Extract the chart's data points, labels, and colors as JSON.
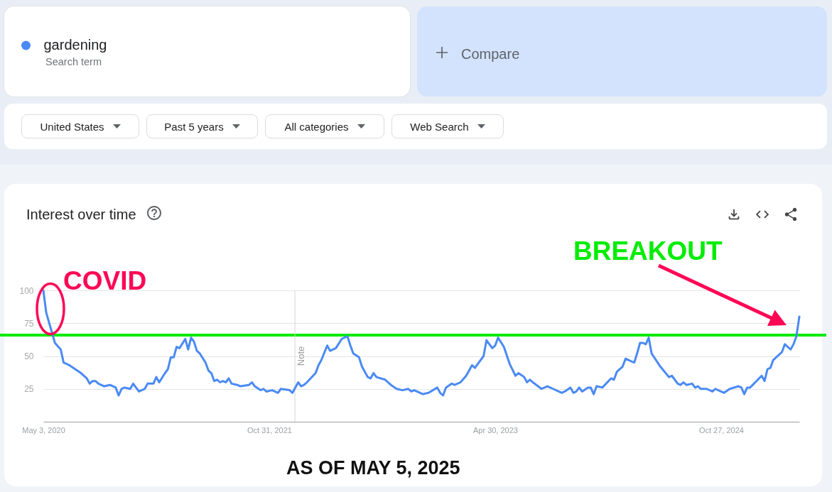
{
  "chart_data": {
    "type": "line",
    "title": "Interest over time",
    "x": [
      "2020-05-03",
      "2020-05-10",
      "2020-05-31",
      "2020-06-14",
      "2020-06-21",
      "2020-07-05",
      "2020-08-02",
      "2020-08-16",
      "2020-08-23",
      "2020-08-30",
      "2020-09-06",
      "2020-09-13",
      "2020-09-27",
      "2020-10-11",
      "2020-10-25",
      "2020-11-01",
      "2020-11-08",
      "2020-11-15",
      "2020-11-29",
      "2020-12-06",
      "2020-12-20",
      "2021-01-03",
      "2021-01-10",
      "2021-01-24",
      "2021-01-31",
      "2021-02-07",
      "2021-02-21",
      "2021-02-28",
      "2021-03-07",
      "2021-03-14",
      "2021-03-21",
      "2021-03-28",
      "2021-04-11",
      "2021-04-18",
      "2021-04-25",
      "2021-05-02",
      "2021-05-09",
      "2021-05-16",
      "2021-05-30",
      "2021-06-06",
      "2021-06-13",
      "2021-06-20",
      "2021-06-27",
      "2021-07-04",
      "2021-07-11",
      "2021-07-18",
      "2021-07-25",
      "2021-08-01",
      "2021-08-15",
      "2021-08-22",
      "2021-09-12",
      "2021-09-19",
      "2021-09-26",
      "2021-10-10",
      "2021-10-17",
      "2021-10-24",
      "2021-11-07",
      "2021-11-21",
      "2021-11-28",
      "2021-12-19",
      "2021-12-26",
      "2022-01-09",
      "2022-01-16",
      "2022-01-23",
      "2022-01-30",
      "2022-02-20",
      "2022-02-27",
      "2022-03-06",
      "2022-03-20",
      "2022-03-27",
      "2022-04-10",
      "2022-04-24",
      "2022-05-08",
      "2022-05-15",
      "2022-05-22",
      "2022-06-05",
      "2022-06-12",
      "2022-06-26",
      "2022-07-03",
      "2022-07-10",
      "2022-07-17",
      "2022-08-07",
      "2022-08-21",
      "2022-09-04",
      "2022-09-18",
      "2022-10-02",
      "2022-10-09",
      "2022-10-16",
      "2022-10-23",
      "2022-11-06",
      "2022-11-20",
      "2022-12-11",
      "2022-12-18",
      "2022-12-25",
      "2023-01-01",
      "2023-01-15",
      "2023-01-22",
      "2023-02-05",
      "2023-02-19",
      "2023-03-05",
      "2023-03-12",
      "2023-04-02",
      "2023-04-09",
      "2023-04-23",
      "2023-04-30",
      "2023-05-07",
      "2023-05-21",
      "2023-06-04",
      "2023-06-18",
      "2023-06-25",
      "2023-07-09",
      "2023-07-16",
      "2023-07-23",
      "2023-07-30",
      "2023-08-20",
      "2023-09-03",
      "2023-09-17",
      "2023-10-08",
      "2023-10-15",
      "2023-10-29",
      "2023-11-05",
      "2023-11-12",
      "2023-11-19",
      "2023-11-26",
      "2023-12-10",
      "2023-12-17",
      "2023-12-24",
      "2023-12-31",
      "2024-01-14",
      "2024-02-04",
      "2024-02-11",
      "2024-02-18",
      "2024-03-03",
      "2024-03-10",
      "2024-03-17",
      "2024-03-31",
      "2024-04-07",
      "2024-04-14",
      "2024-04-21",
      "2024-04-28",
      "2024-05-05",
      "2024-05-12",
      "2024-06-02",
      "2024-06-23",
      "2024-06-30",
      "2024-07-14",
      "2024-07-21",
      "2024-07-28",
      "2024-08-04",
      "2024-08-18",
      "2024-08-25",
      "2024-09-01",
      "2024-09-08",
      "2024-09-22",
      "2024-10-06",
      "2024-10-13",
      "2024-10-20",
      "2024-11-03",
      "2024-11-17",
      "2024-12-08",
      "2024-12-15",
      "2024-12-22",
      "2024-12-29",
      "2025-01-05",
      "2025-02-02",
      "2025-02-09",
      "2025-02-16",
      "2025-02-23",
      "2025-03-02",
      "2025-03-23",
      "2025-03-30",
      "2025-04-13",
      "2025-04-20",
      "2025-04-27",
      "2025-05-04"
    ],
    "series": [
      {
        "name": "gardening",
        "color": "#4a8af4",
        "values": [
          100,
          83,
          60,
          55,
          45,
          43,
          37,
          33,
          29,
          31,
          31,
          29,
          27,
          28,
          26,
          20,
          25,
          26,
          25,
          29,
          23,
          25,
          29,
          29,
          34,
          30,
          37,
          40,
          49,
          49,
          57,
          56,
          63,
          55,
          64,
          61,
          54,
          52,
          45,
          39,
          37,
          31,
          32,
          30,
          31,
          30,
          33,
          29,
          28,
          27,
          28,
          30,
          27,
          24,
          25,
          23,
          24,
          22,
          25,
          24,
          22,
          30,
          27,
          28,
          30,
          37,
          43,
          47,
          58,
          54,
          56,
          63,
          65,
          58,
          52,
          49,
          42,
          34,
          33,
          37,
          34,
          32,
          28,
          25,
          24,
          25,
          23,
          24,
          23,
          21,
          22,
          26,
          22,
          20,
          26,
          29,
          28,
          30,
          35,
          43,
          41,
          50,
          62,
          56,
          58,
          64,
          57,
          44,
          35,
          37,
          34,
          30,
          32,
          30,
          25,
          27,
          25,
          22,
          23,
          26,
          22,
          23,
          26,
          23,
          26,
          26,
          21,
          27,
          26,
          33,
          32,
          38,
          42,
          48,
          47,
          45,
          52,
          60,
          60,
          59,
          64,
          52,
          42,
          34,
          35,
          29,
          28,
          30,
          28,
          29,
          26,
          27,
          25,
          25,
          23,
          25,
          24,
          22,
          25,
          27,
          26,
          21,
          26,
          26,
          35,
          31,
          40,
          41,
          47,
          53,
          59,
          55,
          59,
          65,
          80
        ]
      }
    ],
    "xlim": [
      "2020-05-03",
      "2025-05-04"
    ],
    "xticks": [
      {
        "value": "2020-05-03",
        "label": "May 3, 2020"
      },
      {
        "value": "2021-10-31",
        "label": "Oct 31, 2021"
      },
      {
        "value": "2023-04-30",
        "label": "Apr 30, 2023"
      },
      {
        "value": "2024-10-27",
        "label": "Oct 27, 2024"
      }
    ],
    "ylim": [
      0,
      100
    ],
    "yticks": [
      25,
      50,
      75,
      100
    ],
    "grid": "y",
    "legend": "top left",
    "ref_lines": [
      {
        "axis": "y",
        "value": 66,
        "color": "#00ec00"
      },
      {
        "axis": "x",
        "value": "2022-01-01",
        "label": "Note",
        "color": "#d6d6d6"
      }
    ],
    "annotations": [
      "Search term",
      "Compare",
      "United States",
      "Past 5 years",
      "All categories",
      "Web Search",
      "COVID",
      "BREAKOUT",
      "AS OF MAY 5, 2025"
    ]
  }
}
